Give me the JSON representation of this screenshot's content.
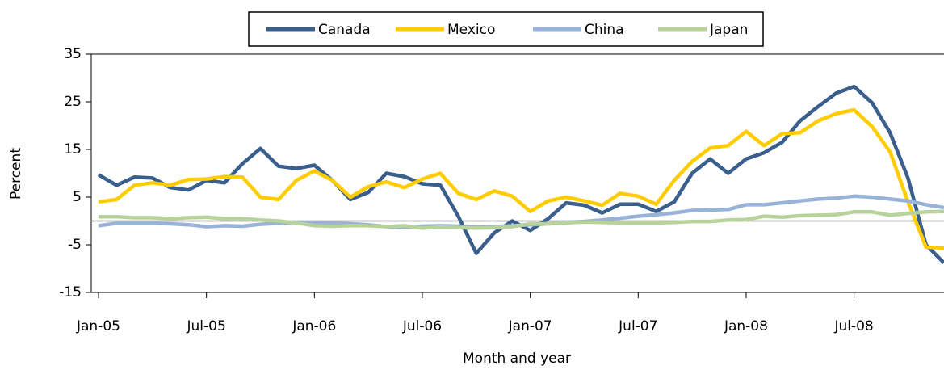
{
  "chart_data": {
    "type": "line",
    "x_label": "Month and year",
    "y_label": "Percent",
    "categories": [
      "Jan-05",
      null,
      null,
      null,
      null,
      null,
      "Jul-05",
      null,
      null,
      null,
      null,
      null,
      "Jan-06",
      null,
      null,
      null,
      null,
      null,
      "Jul-06",
      null,
      null,
      null,
      null,
      null,
      "Jan-07",
      null,
      null,
      null,
      null,
      null,
      "Jul-07",
      null,
      null,
      null,
      null,
      null,
      "Jan-08",
      null,
      null,
      null,
      null,
      null,
      "Jul-08",
      null,
      null,
      null,
      null,
      null
    ],
    "series": [
      {
        "name": "Canada",
        "color": "#3a5f8d",
        "values": [
          9.7,
          7.5,
          9.2,
          9.0,
          7.0,
          6.5,
          8.5,
          8.0,
          12.0,
          15.2,
          11.5,
          11.0,
          11.7,
          8.5,
          4.5,
          6.0,
          10.0,
          9.3,
          7.8,
          7.5,
          1.0,
          -6.8,
          -2.5,
          0,
          -2.0,
          0.5,
          3.8,
          3.3,
          1.7,
          3.5,
          3.5,
          2.0,
          4.0,
          10.0,
          13.0,
          10.0,
          13.0,
          14.3,
          16.5,
          21.0,
          24.0,
          26.8,
          28.2,
          24.8,
          18.5,
          9.0,
          -5.0,
          -8.8
        ]
      },
      {
        "name": "Mexico",
        "color": "#ffcc00",
        "values": [
          4.0,
          4.5,
          7.5,
          8.0,
          7.5,
          8.7,
          8.8,
          9.3,
          9.2,
          5.0,
          4.5,
          8.5,
          10.5,
          8.5,
          5.0,
          7.2,
          8.2,
          7.0,
          8.8,
          10.0,
          5.8,
          4.5,
          6.3,
          5.2,
          2.0,
          4.2,
          5.0,
          4.2,
          3.3,
          5.8,
          5.2,
          3.5,
          8.5,
          12.5,
          15.3,
          15.8,
          18.8,
          15.8,
          18.3,
          18.5,
          21.0,
          22.5,
          23.3,
          19.8,
          14.5,
          4.0,
          -5.5,
          -5.7
        ]
      },
      {
        "name": "China",
        "color": "#98b2d8",
        "values": [
          -1.0,
          -0.5,
          -0.5,
          -0.5,
          -0.6,
          -0.8,
          -1.2,
          -1.0,
          -1.1,
          -0.7,
          -0.5,
          -0.3,
          -0.4,
          -0.5,
          -0.6,
          -0.8,
          -1.2,
          -1.3,
          -1.1,
          -1.0,
          -1.1,
          -1.3,
          -1.2,
          -1.0,
          -0.8,
          -0.6,
          -0.3,
          -0.1,
          0.2,
          0.6,
          1.0,
          1.3,
          1.7,
          2.2,
          2.3,
          2.4,
          3.4,
          3.4,
          3.8,
          4.2,
          4.6,
          4.8,
          5.2,
          5.0,
          4.6,
          4.2,
          3.4,
          2.8
        ]
      },
      {
        "name": "Japan",
        "color": "#b8d29b",
        "values": [
          0.9,
          0.9,
          0.7,
          0.7,
          0.5,
          0.7,
          0.8,
          0.5,
          0.5,
          0.2,
          0,
          -0.4,
          -1.0,
          -1.1,
          -1.0,
          -1.0,
          -1.2,
          -1.0,
          -1.5,
          -1.3,
          -1.4,
          -1.5,
          -1.4,
          -1.2,
          -0.6,
          -0.6,
          -0.4,
          -0.2,
          -0.3,
          -0.4,
          -0.4,
          -0.4,
          -0.3,
          -0.1,
          -0.1,
          0.2,
          0.3,
          1.0,
          0.8,
          1.1,
          1.2,
          1.3,
          1.9,
          1.9,
          1.2,
          1.6,
          1.9,
          2.0
        ]
      }
    ],
    "ylim": [
      -15,
      35
    ],
    "yticks": [
      -15,
      -5,
      5,
      15,
      25,
      35
    ],
    "legend": "top"
  }
}
